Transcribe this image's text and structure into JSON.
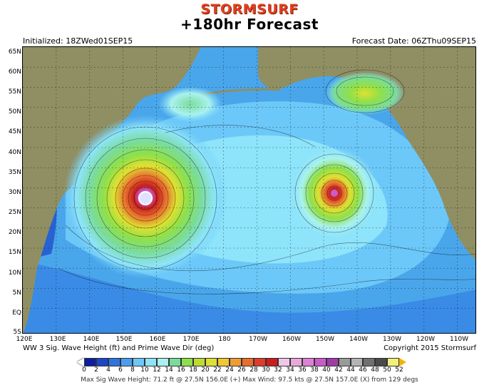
{
  "header": {
    "brand": "STORMSURF",
    "title": "+180hr Forecast",
    "initialized": "Initialized: 18ZWed01SEP15",
    "forecast_date": "Forecast Date: 06ZThu09SEP15"
  },
  "map": {
    "lat_labels": [
      "65N",
      "60N",
      "55N",
      "50N",
      "45N",
      "40N",
      "35N",
      "30N",
      "25N",
      "20N",
      "15N",
      "10N",
      "5N",
      "EQ",
      "5S"
    ],
    "lon_labels": [
      "120E",
      "130E",
      "140E",
      "150E",
      "160E",
      "170E",
      "180",
      "170W",
      "160W",
      "150W",
      "140W",
      "130W",
      "120W",
      "110W"
    ],
    "land_color": "#8f8f63",
    "ocean_color": "#53b8f0"
  },
  "footer": {
    "left": "WW 3 Sig. Wave Height (ft) and Prime Wave Dir (deg)",
    "right": "Copyright 2015 Stormsurf",
    "max_info": "Max Sig Wave Height: 71.2 ft @ 27.5N 156.0E (+)   Max Wind: 97.5 kts @ 27.5N 157.0E (X) from 129 degs"
  },
  "colorbar": {
    "ticks": [
      "0",
      "2",
      "4",
      "6",
      "8",
      "10",
      "12",
      "14",
      "16",
      "18",
      "20",
      "22",
      "24",
      "26",
      "28",
      "30",
      "32",
      "34",
      "36",
      "38",
      "40",
      "42",
      "44",
      "46",
      "48",
      "50",
      "52"
    ],
    "colors": [
      "#0c1e9e",
      "#1a46c8",
      "#2e74e0",
      "#4a9ef0",
      "#6cc8f8",
      "#8ee4fa",
      "#aaf2ee",
      "#7adc9c",
      "#8ee04a",
      "#bcdc32",
      "#e0e032",
      "#f0c832",
      "#f09c32",
      "#e86e2e",
      "#e03c2a",
      "#c81e1e",
      "#f0c8e6",
      "#e8a8dc",
      "#dc82d4",
      "#c85cc8",
      "#a03ca8",
      "#9a9a9a",
      "#b4b4b4",
      "#707070",
      "#4a4a4a",
      "#f0f07a"
    ]
  }
}
